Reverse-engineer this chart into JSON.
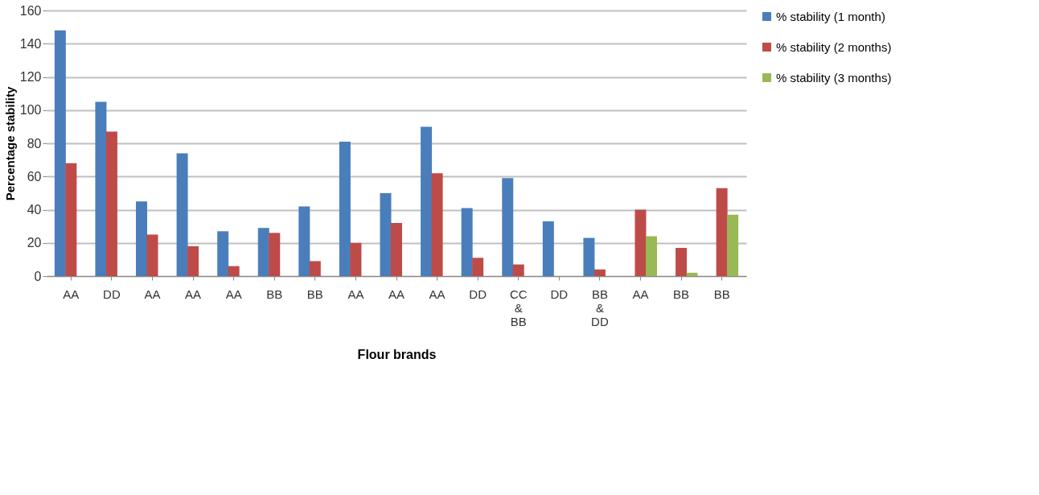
{
  "chart_data": {
    "type": "bar",
    "xlabel": "Flour brands",
    "ylabel": "Percentage stability",
    "categories": [
      "AA",
      "DD",
      "AA",
      "AA",
      "AA",
      "BB",
      "BB",
      "AA",
      "AA",
      "AA",
      "DD",
      "CC\n&\nBB",
      "DD",
      "BB\n&\nDD",
      "AA",
      "BB",
      "BB"
    ],
    "series": [
      {
        "name": "% stability (1 month)",
        "color": "#4a7ebb",
        "values": [
          148,
          105,
          45,
          74,
          27,
          29,
          42,
          81,
          50,
          90,
          41,
          59,
          33,
          23,
          null,
          null,
          null
        ]
      },
      {
        "name": "% stability (2 months)",
        "color": "#be4b48",
        "values": [
          68,
          87,
          25,
          18,
          6,
          26,
          9,
          20,
          32,
          62,
          11,
          7,
          null,
          4,
          40,
          17,
          53
        ]
      },
      {
        "name": "% stability (3 months)",
        "color": "#98b954",
        "values": [
          null,
          null,
          null,
          null,
          null,
          null,
          null,
          null,
          null,
          null,
          null,
          null,
          null,
          null,
          24,
          2,
          37
        ]
      }
    ],
    "ylim": [
      0,
      160
    ],
    "yticks": [
      0,
      20,
      40,
      60,
      80,
      100,
      120,
      140,
      160
    ],
    "grid": "y",
    "legend": "right"
  }
}
